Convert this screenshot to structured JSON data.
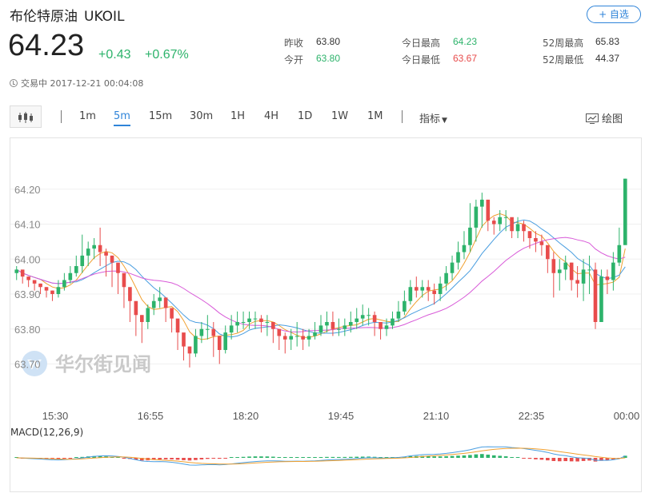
{
  "header": {
    "name": "布伦特原油",
    "symbol": "UKOIL",
    "watch_label": "+ 自选",
    "price": "64.23",
    "change": "+0.43",
    "change_pct": "+0.67%",
    "status": "交易中 2017-12-21 00:04:08"
  },
  "stats": [
    {
      "label": "昨收",
      "value": "63.80",
      "color": "#333333"
    },
    {
      "label": "今开",
      "value": "63.80",
      "color": "#2db36b"
    },
    {
      "label": "今日最高",
      "value": "64.23",
      "color": "#2db36b"
    },
    {
      "label": "今日最低",
      "value": "63.67",
      "color": "#e84c4c"
    },
    {
      "label": "52周最高",
      "value": "65.83",
      "color": "#333333"
    },
    {
      "label": "52周最低",
      "value": "44.37",
      "color": "#333333"
    }
  ],
  "toolbar": {
    "timeframes": [
      "1m",
      "5m",
      "15m",
      "30m",
      "1H",
      "4H",
      "1D",
      "1W",
      "1M"
    ],
    "active": "5m",
    "indicator_label": "指标",
    "draw_label": "绘图"
  },
  "watermark": "华尔街见闻",
  "colors": {
    "up": "#2db36b",
    "down": "#e84c4c",
    "accent": "#2f84d9",
    "ma1": "#4a9ee0",
    "ma2": "#f0a030",
    "ma3": "#d85ad8"
  },
  "chart_data": {
    "type": "candlestick",
    "ylim": [
      63.66,
      64.3
    ],
    "y_ticks": [
      "64.20",
      "64.10",
      "64.00",
      "63.90",
      "63.80",
      "63.70"
    ],
    "x_ticks": [
      "15:30",
      "16:55",
      "18:20",
      "19:45",
      "21:10",
      "22:35",
      "00:00"
    ],
    "close": [
      63.97,
      63.95,
      63.94,
      63.93,
      63.92,
      63.91,
      63.9,
      63.92,
      63.94,
      63.96,
      63.98,
      64.01,
      64.03,
      64.04,
      64.02,
      64.01,
      63.99,
      63.96,
      63.92,
      63.88,
      63.84,
      63.82,
      63.86,
      63.88,
      63.89,
      63.86,
      63.83,
      63.79,
      63.75,
      63.73,
      63.78,
      63.8,
      63.8,
      63.78,
      63.74,
      63.79,
      63.81,
      63.82,
      63.82,
      63.83,
      63.83,
      63.82,
      63.82,
      63.8,
      63.78,
      63.77,
      63.78,
      63.78,
      63.77,
      63.78,
      63.79,
      63.81,
      63.82,
      63.8,
      63.8,
      63.81,
      63.82,
      63.83,
      63.84,
      63.84,
      63.82,
      63.8,
      63.81,
      63.83,
      63.85,
      63.88,
      63.92,
      63.91,
      63.92,
      63.91,
      63.9,
      63.93,
      63.96,
      63.99,
      64.02,
      64.04,
      64.09,
      64.15,
      64.17,
      64.11,
      64.1,
      64.12,
      64.12,
      64.08,
      64.1,
      64.08,
      64.06,
      64.05,
      64.04,
      64.0,
      63.96,
      63.97,
      63.99,
      63.94,
      63.93,
      63.97,
      63.97,
      63.82,
      63.95,
      63.94,
      63.99,
      64.04,
      64.23
    ],
    "high": [
      63.98,
      63.96,
      63.95,
      63.94,
      63.93,
      63.92,
      63.91,
      63.94,
      63.96,
      63.98,
      64.01,
      64.07,
      64.05,
      64.06,
      64.09,
      64.03,
      64.01,
      63.98,
      63.94,
      63.9,
      63.86,
      63.84,
      63.87,
      63.9,
      63.92,
      63.89,
      63.85,
      63.81,
      63.77,
      63.75,
      63.8,
      63.82,
      63.84,
      63.82,
      63.78,
      63.81,
      63.84,
      63.85,
      63.85,
      63.85,
      63.85,
      63.84,
      63.84,
      63.82,
      63.8,
      63.79,
      63.8,
      63.82,
      63.8,
      63.8,
      63.82,
      63.84,
      63.85,
      63.85,
      63.83,
      63.83,
      63.85,
      63.86,
      63.87,
      63.86,
      63.85,
      63.82,
      63.83,
      63.85,
      63.88,
      63.91,
      63.94,
      63.95,
      63.94,
      63.94,
      63.93,
      63.95,
      63.98,
      64.01,
      64.05,
      64.08,
      64.16,
      64.17,
      64.19,
      64.16,
      64.12,
      64.14,
      64.14,
      64.11,
      64.12,
      64.11,
      64.08,
      64.08,
      64.07,
      64.03,
      64.02,
      64.0,
      64.01,
      63.99,
      63.98,
      64.0,
      64.01,
      63.99,
      63.97,
      63.97,
      64.02,
      64.09,
      64.23
    ],
    "low": [
      63.94,
      63.93,
      63.92,
      63.91,
      63.9,
      63.89,
      63.88,
      63.89,
      63.91,
      63.93,
      63.95,
      63.96,
      63.98,
      64.0,
      63.98,
      63.95,
      63.92,
      63.9,
      63.86,
      63.82,
      63.78,
      63.76,
      63.8,
      63.84,
      63.86,
      63.82,
      63.79,
      63.74,
      63.71,
      63.69,
      63.72,
      63.76,
      63.77,
      63.72,
      63.7,
      63.73,
      63.77,
      63.79,
      63.8,
      63.8,
      63.8,
      63.79,
      63.78,
      63.76,
      63.74,
      63.73,
      63.74,
      63.75,
      63.74,
      63.75,
      63.77,
      63.78,
      63.79,
      63.78,
      63.78,
      63.78,
      63.79,
      63.8,
      63.81,
      63.81,
      63.78,
      63.77,
      63.78,
      63.8,
      63.82,
      63.84,
      63.87,
      63.89,
      63.89,
      63.88,
      63.87,
      63.88,
      63.91,
      63.94,
      63.97,
      64.0,
      64.02,
      64.05,
      64.09,
      64.08,
      64.07,
      64.08,
      64.08,
      64.06,
      64.06,
      64.05,
      64.03,
      64.02,
      64.01,
      63.96,
      63.89,
      63.91,
      63.94,
      63.91,
      63.89,
      63.88,
      63.9,
      63.8,
      63.84,
      63.9,
      63.91,
      63.98,
      64.08
    ]
  },
  "macd": {
    "label": "MACD(12,26,9)"
  }
}
